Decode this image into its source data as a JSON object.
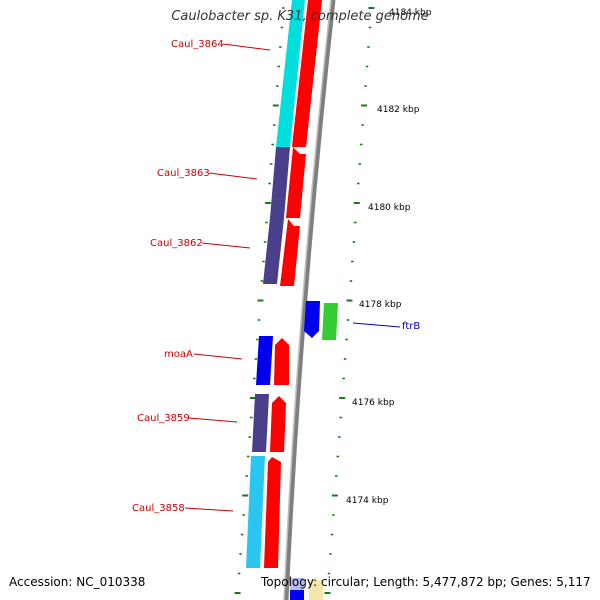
{
  "title": "Caulobacter sp. K31, complete genome",
  "accession": "Accession: NC_010338",
  "summary": "Topology: circular; Length: 5,477,872 bp; Genes: 5,117",
  "colors": {
    "backbone": "#808080",
    "tick": "#1a7a1a",
    "label_red": "#cc0000",
    "label_blue": "#0000cc",
    "cyan": "#00e0e0",
    "navy": "#4a3f8a",
    "red": "#ff0000",
    "blue": "#0000ee",
    "green": "#33cc33"
  },
  "kbp_labels": [
    "4184 kbp",
    "4182 kbp",
    "4180 kbp",
    "4178 kbp",
    "4176 kbp",
    "4174 kbp"
  ],
  "gene_labels": [
    {
      "text": "Caul_3864",
      "color": "red"
    },
    {
      "text": "Caul_3863",
      "color": "red"
    },
    {
      "text": "Caul_3862",
      "color": "red"
    },
    {
      "text": "moaA",
      "color": "red"
    },
    {
      "text": "Caul_3859",
      "color": "red"
    },
    {
      "text": "Caul_3858",
      "color": "red"
    },
    {
      "text": "ftrB",
      "color": "blue"
    }
  ]
}
